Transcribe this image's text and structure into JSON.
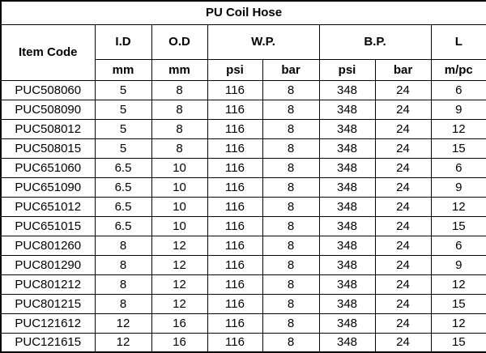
{
  "title": "PU Coil Hose",
  "table": {
    "header": {
      "item_code": "Item Code",
      "groups": [
        {
          "label": "I.D",
          "units": [
            "mm"
          ]
        },
        {
          "label": "O.D",
          "units": [
            "mm"
          ]
        },
        {
          "label": "W.P.",
          "units": [
            "psi",
            "bar"
          ]
        },
        {
          "label": "B.P.",
          "units": [
            "psi",
            "bar"
          ]
        },
        {
          "label": "L",
          "units": [
            "m/pc"
          ]
        }
      ]
    },
    "rows": [
      [
        "PUC508060",
        "5",
        "8",
        "116",
        "8",
        "348",
        "24",
        "6"
      ],
      [
        "PUC508090",
        "5",
        "8",
        "116",
        "8",
        "348",
        "24",
        "9"
      ],
      [
        "PUC508012",
        "5",
        "8",
        "116",
        "8",
        "348",
        "24",
        "12"
      ],
      [
        "PUC508015",
        "5",
        "8",
        "116",
        "8",
        "348",
        "24",
        "15"
      ],
      [
        "PUC651060",
        "6.5",
        "10",
        "116",
        "8",
        "348",
        "24",
        "6"
      ],
      [
        "PUC651090",
        "6.5",
        "10",
        "116",
        "8",
        "348",
        "24",
        "9"
      ],
      [
        "PUC651012",
        "6.5",
        "10",
        "116",
        "8",
        "348",
        "24",
        "12"
      ],
      [
        "PUC651015",
        "6.5",
        "10",
        "116",
        "8",
        "348",
        "24",
        "15"
      ],
      [
        "PUC801260",
        "8",
        "12",
        "116",
        "8",
        "348",
        "24",
        "6"
      ],
      [
        "PUC801290",
        "8",
        "12",
        "116",
        "8",
        "348",
        "24",
        "9"
      ],
      [
        "PUC801212",
        "8",
        "12",
        "116",
        "8",
        "348",
        "24",
        "12"
      ],
      [
        "PUC801215",
        "8",
        "12",
        "116",
        "8",
        "348",
        "24",
        "15"
      ],
      [
        "PUC121612",
        "12",
        "16",
        "116",
        "8",
        "348",
        "24",
        "12"
      ],
      [
        "PUC121615",
        "12",
        "16",
        "116",
        "8",
        "348",
        "24",
        "15"
      ]
    ]
  },
  "colors": {
    "border": "#000000",
    "text": "#000000",
    "background": "#ffffff"
  }
}
